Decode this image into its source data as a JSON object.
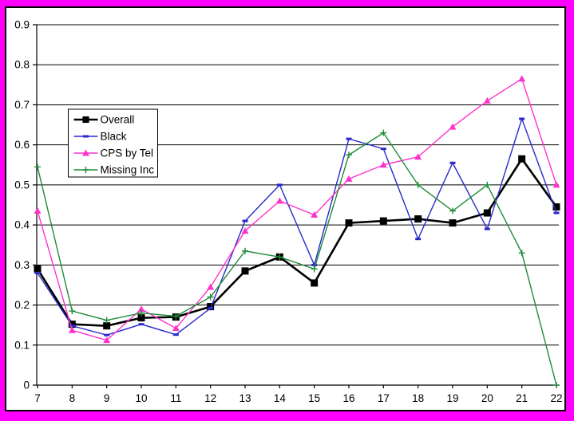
{
  "frame": {
    "outer_border_color": "#FF00FF",
    "inner_border_color": "#000000",
    "plot_background": "#FFFFFF"
  },
  "chart_data": {
    "type": "line",
    "title": "",
    "xlabel": "",
    "ylabel": "",
    "grid": "horizontal",
    "legend_position": "upper-left-inside",
    "x": [
      7,
      8,
      9,
      10,
      11,
      12,
      13,
      14,
      15,
      16,
      17,
      18,
      19,
      20,
      21,
      22
    ],
    "ylim": [
      0,
      0.9
    ],
    "ytick_step": 0.1,
    "y_tick_labels": [
      "0",
      "0.1",
      "0.2",
      "0.3",
      "0.4",
      "0.5",
      "0.6",
      "0.7",
      "0.8",
      "0.9"
    ],
    "series": [
      {
        "name": "Overall",
        "color": "#000000",
        "marker": "square",
        "line_width": 2.6,
        "values": [
          0.29,
          0.152,
          0.148,
          0.168,
          0.17,
          0.196,
          0.285,
          0.32,
          0.255,
          0.405,
          0.41,
          0.415,
          0.405,
          0.43,
          0.565,
          0.445
        ]
      },
      {
        "name": "Black",
        "color": "#2929CC",
        "marker": "dash",
        "line_width": 1.4,
        "values": [
          0.28,
          0.148,
          0.125,
          0.152,
          0.126,
          0.192,
          0.41,
          0.5,
          0.3,
          0.615,
          0.59,
          0.365,
          0.555,
          0.39,
          0.665,
          0.43
        ]
      },
      {
        "name": "CPS by Tel",
        "color": "#FF33CC",
        "marker": "triangle",
        "line_width": 1.4,
        "values": [
          0.435,
          0.137,
          0.112,
          0.19,
          0.142,
          0.245,
          0.385,
          0.46,
          0.425,
          0.515,
          0.55,
          0.57,
          0.645,
          0.71,
          0.765,
          0.5
        ]
      },
      {
        "name": "Missing Inc",
        "color": "#1E8C37",
        "marker": "plus",
        "line_width": 1.4,
        "values": [
          0.545,
          0.185,
          0.162,
          0.18,
          0.172,
          0.22,
          0.335,
          0.32,
          0.29,
          0.575,
          0.63,
          0.5,
          0.435,
          0.5,
          0.33,
          0.0
        ]
      }
    ]
  }
}
